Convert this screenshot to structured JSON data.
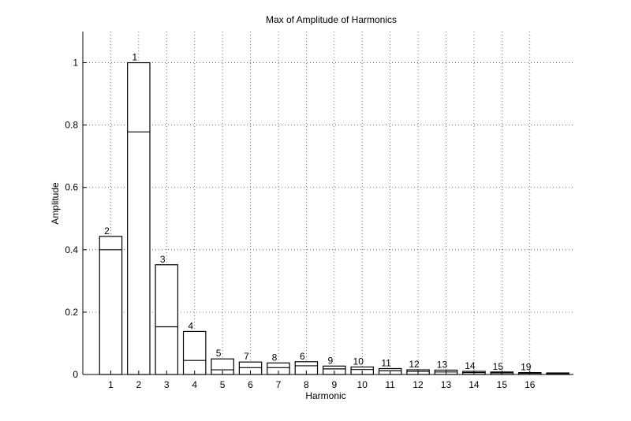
{
  "chart_data": {
    "type": "bar",
    "title": "Max of Amplitude of Harmonics",
    "xlabel": "Harmonic",
    "ylabel": "Amplitude",
    "ylim": [
      0,
      1.1
    ],
    "yticks": [
      "0",
      "0.2",
      "0.4",
      "0.6",
      "0.8",
      "1"
    ],
    "grid": true,
    "categories": [
      "1",
      "2",
      "3",
      "4",
      "5",
      "6",
      "7",
      "8",
      "9",
      "10",
      "11",
      "12",
      "13",
      "14",
      "15",
      "16",
      ""
    ],
    "series": [
      {
        "values": [
          0.443,
          1.0,
          0.352,
          0.138,
          0.05,
          0.04,
          0.037,
          0.041,
          0.027,
          0.024,
          0.019,
          0.015,
          0.014,
          0.01,
          0.008,
          0.006,
          0.005
        ]
      },
      {
        "values": [
          0.4,
          0.778,
          0.153,
          0.045,
          0.015,
          0.022,
          0.022,
          0.028,
          0.018,
          0.016,
          0.012,
          0.01,
          0.008,
          0.006,
          0.005,
          0.004,
          0.003
        ]
      }
    ],
    "bar_labels": [
      "2",
      "1",
      "3",
      "4",
      "5",
      "7",
      "8",
      "6",
      "9",
      "10",
      "11",
      "12",
      "13",
      "14",
      "15",
      "19",
      ""
    ]
  }
}
